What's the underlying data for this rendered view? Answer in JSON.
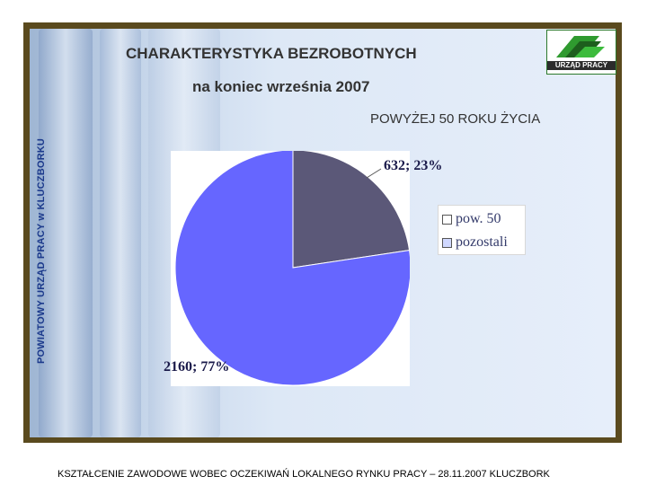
{
  "slide": {
    "title": "CHARAKTERYSTYKA BEZROBOTNYCH",
    "subtitle": "na koniec września 2007",
    "section": "POWYŻEJ 50 ROKU ŻYCIA",
    "vertical_label": "POWIATOWY URZĄD PRACY w KLUCZBORKU",
    "logo_text": "URZĄD PRACY",
    "footer": "KSZTAŁCENIE ZAWODOWE WOBEC OCZEKIWAŃ LOKALNEGO RYNKU PRACY – 28.11.2007 KLUCZBORK"
  },
  "colors": {
    "slice_1": "#5b5878",
    "slice_2": "#6666ff",
    "frame": "#5a4a1e"
  },
  "chart_data": {
    "type": "pie",
    "title": "",
    "categories": [
      "pow. 50",
      "pozostali"
    ],
    "values": [
      632,
      2160
    ],
    "percent": [
      23,
      77
    ],
    "data_labels": [
      "632; 23%",
      "2160; 77%"
    ],
    "legend": [
      "pow. 50",
      "pozostali"
    ],
    "legend_position": "right"
  }
}
